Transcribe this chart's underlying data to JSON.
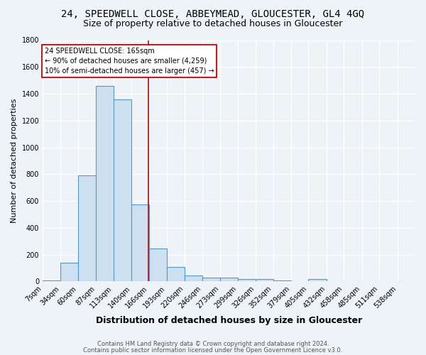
{
  "title": "24, SPEEDWELL CLOSE, ABBEYMEAD, GLOUCESTER, GL4 4GQ",
  "subtitle": "Size of property relative to detached houses in Gloucester",
  "xlabel": "Distribution of detached houses by size in Gloucester",
  "ylabel": "Number of detached properties",
  "bin_labels": [
    "7sqm",
    "34sqm",
    "60sqm",
    "87sqm",
    "113sqm",
    "140sqm",
    "166sqm",
    "193sqm",
    "220sqm",
    "246sqm",
    "273sqm",
    "299sqm",
    "326sqm",
    "352sqm",
    "379sqm",
    "405sqm",
    "432sqm",
    "458sqm",
    "485sqm",
    "511sqm",
    "538sqm"
  ],
  "bar_values": [
    10,
    140,
    790,
    1460,
    1360,
    575,
    248,
    110,
    42,
    27,
    27,
    16,
    18,
    10,
    0,
    20,
    0,
    0,
    0,
    0,
    0
  ],
  "bar_color": "#cce0f0",
  "bar_edge_color": "#5599cc",
  "annotation_text_line1": "24 SPEEDWELL CLOSE: 165sqm",
  "annotation_text_line2": "← 90% of detached houses are smaller (4,259)",
  "annotation_text_line3": "10% of semi-detached houses are larger (457) →",
  "annotation_box_color": "#ffffff",
  "annotation_box_edge_color": "#cc0000",
  "red_line_color": "#cc0000",
  "footer1": "Contains HM Land Registry data © Crown copyright and database right 2024.",
  "footer2": "Contains public sector information licensed under the Open Government Licence v3.0.",
  "bg_color": "#eef3f8",
  "plot_bg_color": "#eef3f8",
  "grid_color": "#ffffff",
  "title_fontsize": 10,
  "subtitle_fontsize": 9,
  "ylabel_fontsize": 8,
  "xlabel_fontsize": 9,
  "tick_fontsize": 7,
  "annotation_fontsize": 7,
  "footer_fontsize": 6,
  "ylim": [
    0,
    1800
  ],
  "yticks": [
    0,
    200,
    400,
    600,
    800,
    1000,
    1200,
    1400,
    1600,
    1800
  ],
  "bin_edges": [
    7,
    34,
    60,
    87,
    113,
    140,
    166,
    193,
    220,
    246,
    273,
    299,
    326,
    352,
    379,
    405,
    432,
    458,
    485,
    511,
    538,
    565
  ],
  "red_line_x": 165
}
